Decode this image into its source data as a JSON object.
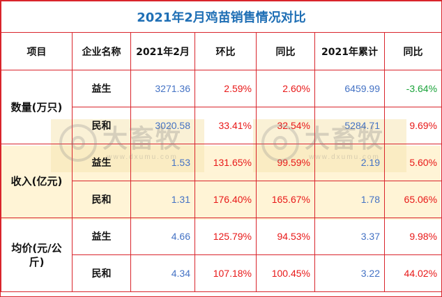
{
  "title": "2021年2月鸡苗销售情况对比",
  "headers": [
    "项目",
    "企业名称",
    "2021年2月",
    "环比",
    "同比",
    "2021年累计",
    "同比"
  ],
  "groups": [
    {
      "metric": "数量(万只)",
      "rows": [
        {
          "company": "益生",
          "feb": "3271.36",
          "mom": "2.59%",
          "yoy": "2.60%",
          "ytd": "6459.99",
          "ytd_yoy": "-3.64%"
        },
        {
          "company": "民和",
          "feb": "3020.58",
          "mom": "33.41%",
          "yoy": "32.54%",
          "ytd": "5284.71",
          "ytd_yoy": "9.69%"
        }
      ]
    },
    {
      "metric": "收入(亿元)",
      "rows": [
        {
          "company": "益生",
          "feb": "1.53",
          "mom": "131.65%",
          "yoy": "99.59%",
          "ytd": "2.19",
          "ytd_yoy": "5.60%"
        },
        {
          "company": "民和",
          "feb": "1.31",
          "mom": "176.40%",
          "yoy": "165.67%",
          "ytd": "1.78",
          "ytd_yoy": "65.06%"
        }
      ]
    },
    {
      "metric": "均价(元/公斤)",
      "rows": [
        {
          "company": "益生",
          "feb": "4.66",
          "mom": "125.79%",
          "yoy": "94.53%",
          "ytd": "3.37",
          "ytd_yoy": "9.98%"
        },
        {
          "company": "民和",
          "feb": "4.34",
          "mom": "107.18%",
          "yoy": "100.45%",
          "ytd": "3.22",
          "ytd_yoy": "44.02%"
        }
      ]
    }
  ],
  "watermark": {
    "cn": "大畜牧",
    "url": "www.dxumu.com"
  },
  "colors": {
    "border": "#d9242b",
    "title": "#1f6fb5",
    "blue_value": "#4472c4",
    "red_value": "#e81818",
    "green_value": "#1aa33a",
    "band": "#fff4d6"
  }
}
